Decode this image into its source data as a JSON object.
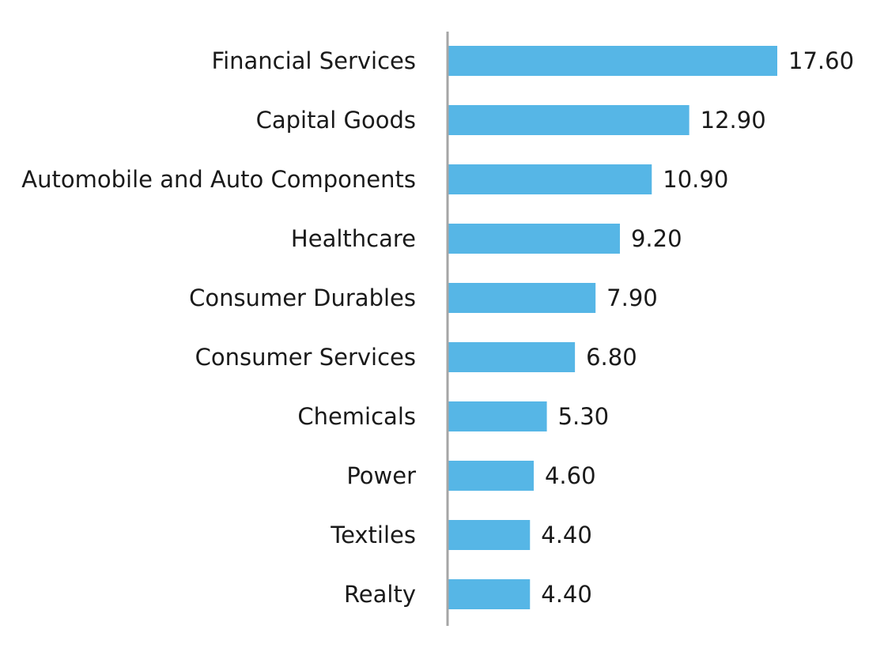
{
  "chart_data": {
    "type": "bar",
    "orientation": "horizontal",
    "categories": [
      "Financial Services",
      "Capital Goods",
      "Automobile and Auto Components",
      "Healthcare",
      "Consumer Durables",
      "Consumer Services",
      "Chemicals",
      "Power",
      "Textiles",
      "Realty"
    ],
    "values": [
      17.6,
      12.9,
      10.9,
      9.2,
      7.9,
      6.8,
      5.3,
      4.6,
      4.4,
      4.4
    ],
    "value_labels": [
      "17.60",
      "12.90",
      "10.90",
      "9.20",
      "7.90",
      "6.80",
      "5.30",
      "4.60",
      "4.40",
      "4.40"
    ],
    "title": "",
    "xlabel": "",
    "ylabel": "",
    "xlim": [
      0,
      17.6
    ],
    "grid": false,
    "legend": "none",
    "bar_color": "#56b6e6",
    "axis_color": "#a6a6a6"
  }
}
